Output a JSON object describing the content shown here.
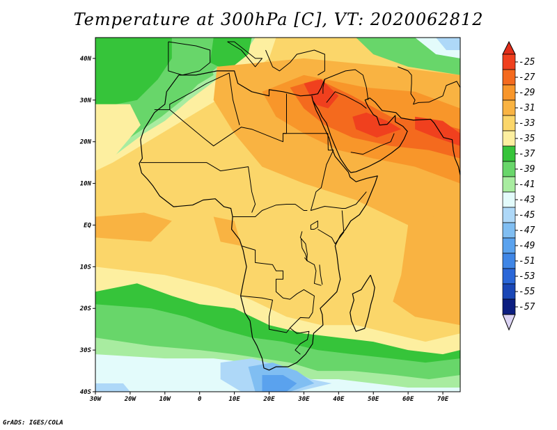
{
  "title": "Temperature at 300hPa [C], VT: 2020062812",
  "credit": "GrADS: IGES/COLA",
  "map": {
    "lon_range": [
      -30,
      75
    ],
    "lat_range": [
      -40,
      45
    ],
    "lon_ticks": [
      {
        "value": -30,
        "label": "30W"
      },
      {
        "value": -20,
        "label": "20W"
      },
      {
        "value": -10,
        "label": "10W"
      },
      {
        "value": 0,
        "label": "0"
      },
      {
        "value": 10,
        "label": "10E"
      },
      {
        "value": 20,
        "label": "20E"
      },
      {
        "value": 30,
        "label": "30E"
      },
      {
        "value": 40,
        "label": "40E"
      },
      {
        "value": 50,
        "label": "50E"
      },
      {
        "value": 60,
        "label": "60E"
      },
      {
        "value": 70,
        "label": "70E"
      }
    ],
    "lat_ticks": [
      {
        "value": 40,
        "label": "40N"
      },
      {
        "value": 30,
        "label": "30N"
      },
      {
        "value": 20,
        "label": "20N"
      },
      {
        "value": 10,
        "label": "10N"
      },
      {
        "value": 0,
        "label": "EQ"
      },
      {
        "value": -10,
        "label": "10S"
      },
      {
        "value": -20,
        "label": "20S"
      },
      {
        "value": -30,
        "label": "30S"
      },
      {
        "value": -40,
        "label": "40S"
      }
    ]
  },
  "colorbar": {
    "levels": [
      {
        "label": "-25",
        "color": "#f0401e"
      },
      {
        "label": "-27",
        "color": "#f46a1e"
      },
      {
        "label": "-29",
        "color": "#f8962a"
      },
      {
        "label": "-31",
        "color": "#f9b342"
      },
      {
        "label": "-33",
        "color": "#fbd66a"
      },
      {
        "label": "-35",
        "color": "#fdefa0"
      },
      {
        "label": "-37",
        "color": "#36c43a"
      },
      {
        "label": "-39",
        "color": "#68d66a"
      },
      {
        "label": "-41",
        "color": "#a8eca0"
      },
      {
        "label": "-43",
        "color": "#e3fbfb"
      },
      {
        "label": "-45",
        "color": "#aed8f8"
      },
      {
        "label": "-47",
        "color": "#80bef2"
      },
      {
        "label": "-49",
        "color": "#5aa2ee"
      },
      {
        "label": "-51",
        "color": "#3f86e6"
      },
      {
        "label": "-53",
        "color": "#2a67d8"
      },
      {
        "label": "-55",
        "color": "#1a47b6"
      },
      {
        "label": "-57",
        "color": "#0c1e80"
      }
    ],
    "top_arrow_color": "#e22e1a",
    "bottom_arrow_color": "#dcd4f4"
  }
}
